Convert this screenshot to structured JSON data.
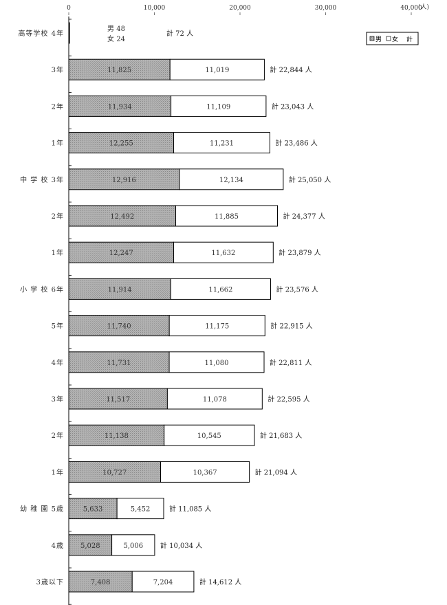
{
  "chart_data": {
    "type": "bar",
    "orientation": "horizontal",
    "stacked": true,
    "xlim": [
      0,
      40000
    ],
    "x_ticks": [
      {
        "value": 0,
        "label": "0"
      },
      {
        "value": 10000,
        "label": "10,000"
      },
      {
        "value": 20000,
        "label": "20,000"
      },
      {
        "value": 30000,
        "label": "30,000"
      },
      {
        "value": 40000,
        "label": "40,000"
      }
    ],
    "x_unit": "(人)",
    "grid": false,
    "legend_position": "top-right",
    "legend": {
      "male": "男",
      "female": "女",
      "total": "計"
    },
    "total_prefix": "計",
    "total_suffix": "人",
    "colors": {
      "male": "#aaaaaa",
      "female": "#ffffff",
      "stroke": "#000000"
    },
    "categories": [
      {
        "school": "高等学校",
        "grade": "4年",
        "male": 48,
        "female": 24,
        "male_label": "男 48",
        "female_label": "女 24",
        "total": "72",
        "inline": false
      },
      {
        "school": "",
        "grade": "3年",
        "male": 11825,
        "female": 11019,
        "male_label": "11,825",
        "female_label": "11,019",
        "total": "22,844",
        "inline": true
      },
      {
        "school": "",
        "grade": "2年",
        "male": 11934,
        "female": 11109,
        "male_label": "11,934",
        "female_label": "11,109",
        "total": "23,043",
        "inline": true
      },
      {
        "school": "",
        "grade": "1年",
        "male": 12255,
        "female": 11231,
        "male_label": "12,255",
        "female_label": "11,231",
        "total": "23,486",
        "inline": true
      },
      {
        "school": "中 学 校",
        "grade": "3年",
        "male": 12916,
        "female": 12134,
        "male_label": "12,916",
        "female_label": "12,134",
        "total": "25,050",
        "inline": true
      },
      {
        "school": "",
        "grade": "2年",
        "male": 12492,
        "female": 11885,
        "male_label": "12,492",
        "female_label": "11,885",
        "total": "24,377",
        "inline": true
      },
      {
        "school": "",
        "grade": "1年",
        "male": 12247,
        "female": 11632,
        "male_label": "12,247",
        "female_label": "11,632",
        "total": "23,879",
        "inline": true
      },
      {
        "school": "小 学 校",
        "grade": "6年",
        "male": 11914,
        "female": 11662,
        "male_label": "11,914",
        "female_label": "11,662",
        "total": "23,576",
        "inline": true
      },
      {
        "school": "",
        "grade": "5年",
        "male": 11740,
        "female": 11175,
        "male_label": "11,740",
        "female_label": "11,175",
        "total": "22,915",
        "inline": true
      },
      {
        "school": "",
        "grade": "4年",
        "male": 11731,
        "female": 11080,
        "male_label": "11,731",
        "female_label": "11,080",
        "total": "22,811",
        "inline": true
      },
      {
        "school": "",
        "grade": "3年",
        "male": 11517,
        "female": 11078,
        "male_label": "11,517",
        "female_label": "11,078",
        "total": "22,595",
        "inline": true
      },
      {
        "school": "",
        "grade": "2年",
        "male": 11138,
        "female": 10545,
        "male_label": "11,138",
        "female_label": "10,545",
        "total": "21,683",
        "inline": true
      },
      {
        "school": "",
        "grade": "1年",
        "male": 10727,
        "female": 10367,
        "male_label": "10,727",
        "female_label": "10,367",
        "total": "21,094",
        "inline": true
      },
      {
        "school": "幼 稚 園",
        "grade": "5歳",
        "male": 5633,
        "female": 5452,
        "male_label": "5,633",
        "female_label": "5,452",
        "total": "11,085",
        "inline": true
      },
      {
        "school": "",
        "grade": "4歳",
        "male": 5028,
        "female": 5006,
        "male_label": "5,028",
        "female_label": "5,006",
        "total": "10,034",
        "inline": true
      },
      {
        "school": "",
        "grade": "3歳以下",
        "male": 7408,
        "female": 7204,
        "male_label": "7,408",
        "female_label": "7,204",
        "total": "14,612",
        "inline": true
      }
    ]
  }
}
